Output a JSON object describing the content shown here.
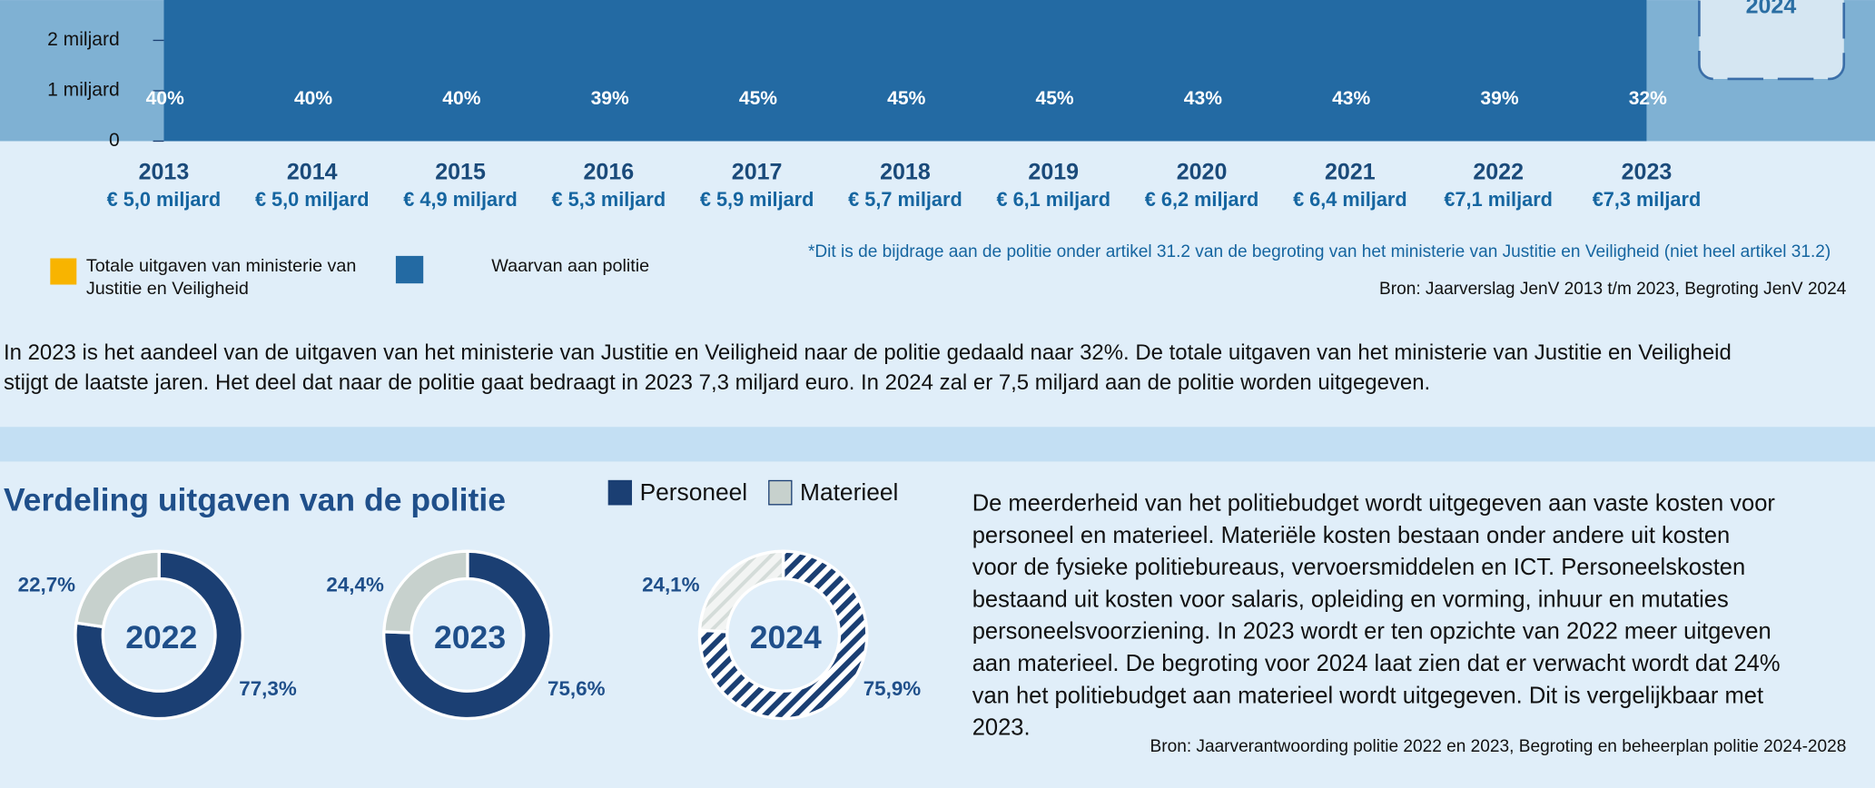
{
  "chart_data": [
    {
      "type": "area",
      "categories": [
        "2013",
        "2014",
        "2015",
        "2016",
        "2017",
        "2018",
        "2019",
        "2020",
        "2021",
        "2022",
        "2023"
      ],
      "series": [
        {
          "name": "Totale uitgaven van ministerie van Justitie en Veiligheid",
          "color": "#f8b400",
          "values": [
            null,
            null,
            null,
            null,
            null,
            null,
            null,
            null,
            null,
            null,
            null
          ]
        },
        {
          "name": "Waarvan aan politie",
          "color": "#236aa3",
          "values": [
            5.0,
            5.0,
            4.9,
            5.3,
            5.9,
            5.7,
            6.1,
            6.2,
            6.4,
            7.1,
            7.3
          ],
          "value_labels": [
            "€ 5,0 miljard",
            "€ 5,0 miljard",
            "€ 4,9 miljard",
            "€ 5,3 miljard",
            "€ 5,9 miljard",
            "€ 5,7 miljard",
            "€ 6,1 miljard",
            "€ 6,2 miljard",
            "€ 6,4 miljard",
            "€7,1 miljard",
            "€7,3 miljard"
          ]
        }
      ],
      "share_values": [
        40,
        40,
        40,
        39,
        45,
        45,
        45,
        43,
        43,
        39,
        32
      ],
      "share_labels": [
        "40%",
        "40%",
        "40%",
        "39%",
        "45%",
        "45%",
        "45%",
        "43%",
        "43%",
        "39%",
        "32%"
      ],
      "ylim": [
        0,
        2.8
      ],
      "yticks": [
        0,
        {
          "value": 1,
          "label": "1 miljard"
        },
        {
          "value": 2,
          "label": "2 miljard"
        }
      ],
      "annotation": "2024",
      "footnote": "*Dit is de bijdrage aan de politie onder artikel 31.2 van de begroting van het ministerie van Justitie en Veiligheid (niet heel artikel 31.2)",
      "source": "Bron: Jaarverslag JenV 2013 t/m 2023, Begroting JenV 2024"
    },
    {
      "type": "donut",
      "title": "2022",
      "categories": [
        "Personeel",
        "Materieel"
      ],
      "values": [
        77.3,
        22.7
      ],
      "value_labels": [
        "77,3%",
        "22,7%"
      ],
      "colors": [
        "#1b3f73",
        "#c7d1cd"
      ]
    },
    {
      "type": "donut",
      "title": "2023",
      "categories": [
        "Personeel",
        "Materieel"
      ],
      "values": [
        75.6,
        24.4
      ],
      "value_labels": [
        "75,6%",
        "24,4%"
      ],
      "colors": [
        "#1b3f73",
        "#c7d1cd"
      ]
    },
    {
      "type": "donut",
      "title": "2024",
      "categories": [
        "Personeel",
        "Materieel"
      ],
      "values": [
        75.9,
        24.1
      ],
      "value_labels": [
        "75,9%",
        "24,1%"
      ],
      "colors": [
        "#1b3f73",
        "#c7d1cd"
      ],
      "pattern": "hatched"
    }
  ],
  "intro_text": [
    "In 2023 is het aandeel van de uitgaven van het ministerie van Justitie en Veiligheid naar de politie gedaald naar 32%. De totale uitgaven van het ministerie van Justitie en Veiligheid",
    "stijgt de laatste jaren. Het deel dat naar de politie gaat bedraagt in 2023 7,3 miljard euro. In 2024 zal er 7,5 miljard aan de politie worden uitgegeven."
  ],
  "section_title": "Verdeling uitgaven van de politie",
  "body_text": [
    "De meerderheid van het politiebudget wordt uitgegeven aan vaste kosten voor",
    "personeel en materieel. Materiële kosten bestaan onder andere uit kosten",
    "voor de fysieke politiebureaus, vervoersmiddelen en ICT. Personeelskosten",
    "bestaand uit kosten voor salaris, opleiding en vorming, inhuur en mutaties",
    "personeelsvoorziening. In 2023 wordt er ten opzichte van 2022 meer uitgeven",
    "aan materieel. De begroting voor 2024 laat zien dat er verwacht wordt dat 24%",
    "van het politiebudget aan materieel wordt uitgegeven. Dit is vergelijkbaar met",
    "2023."
  ],
  "source": "Bron: Jaarverantwoording politie 2022 en 2023, Begroting en beheerplan politie 2024-2028"
}
